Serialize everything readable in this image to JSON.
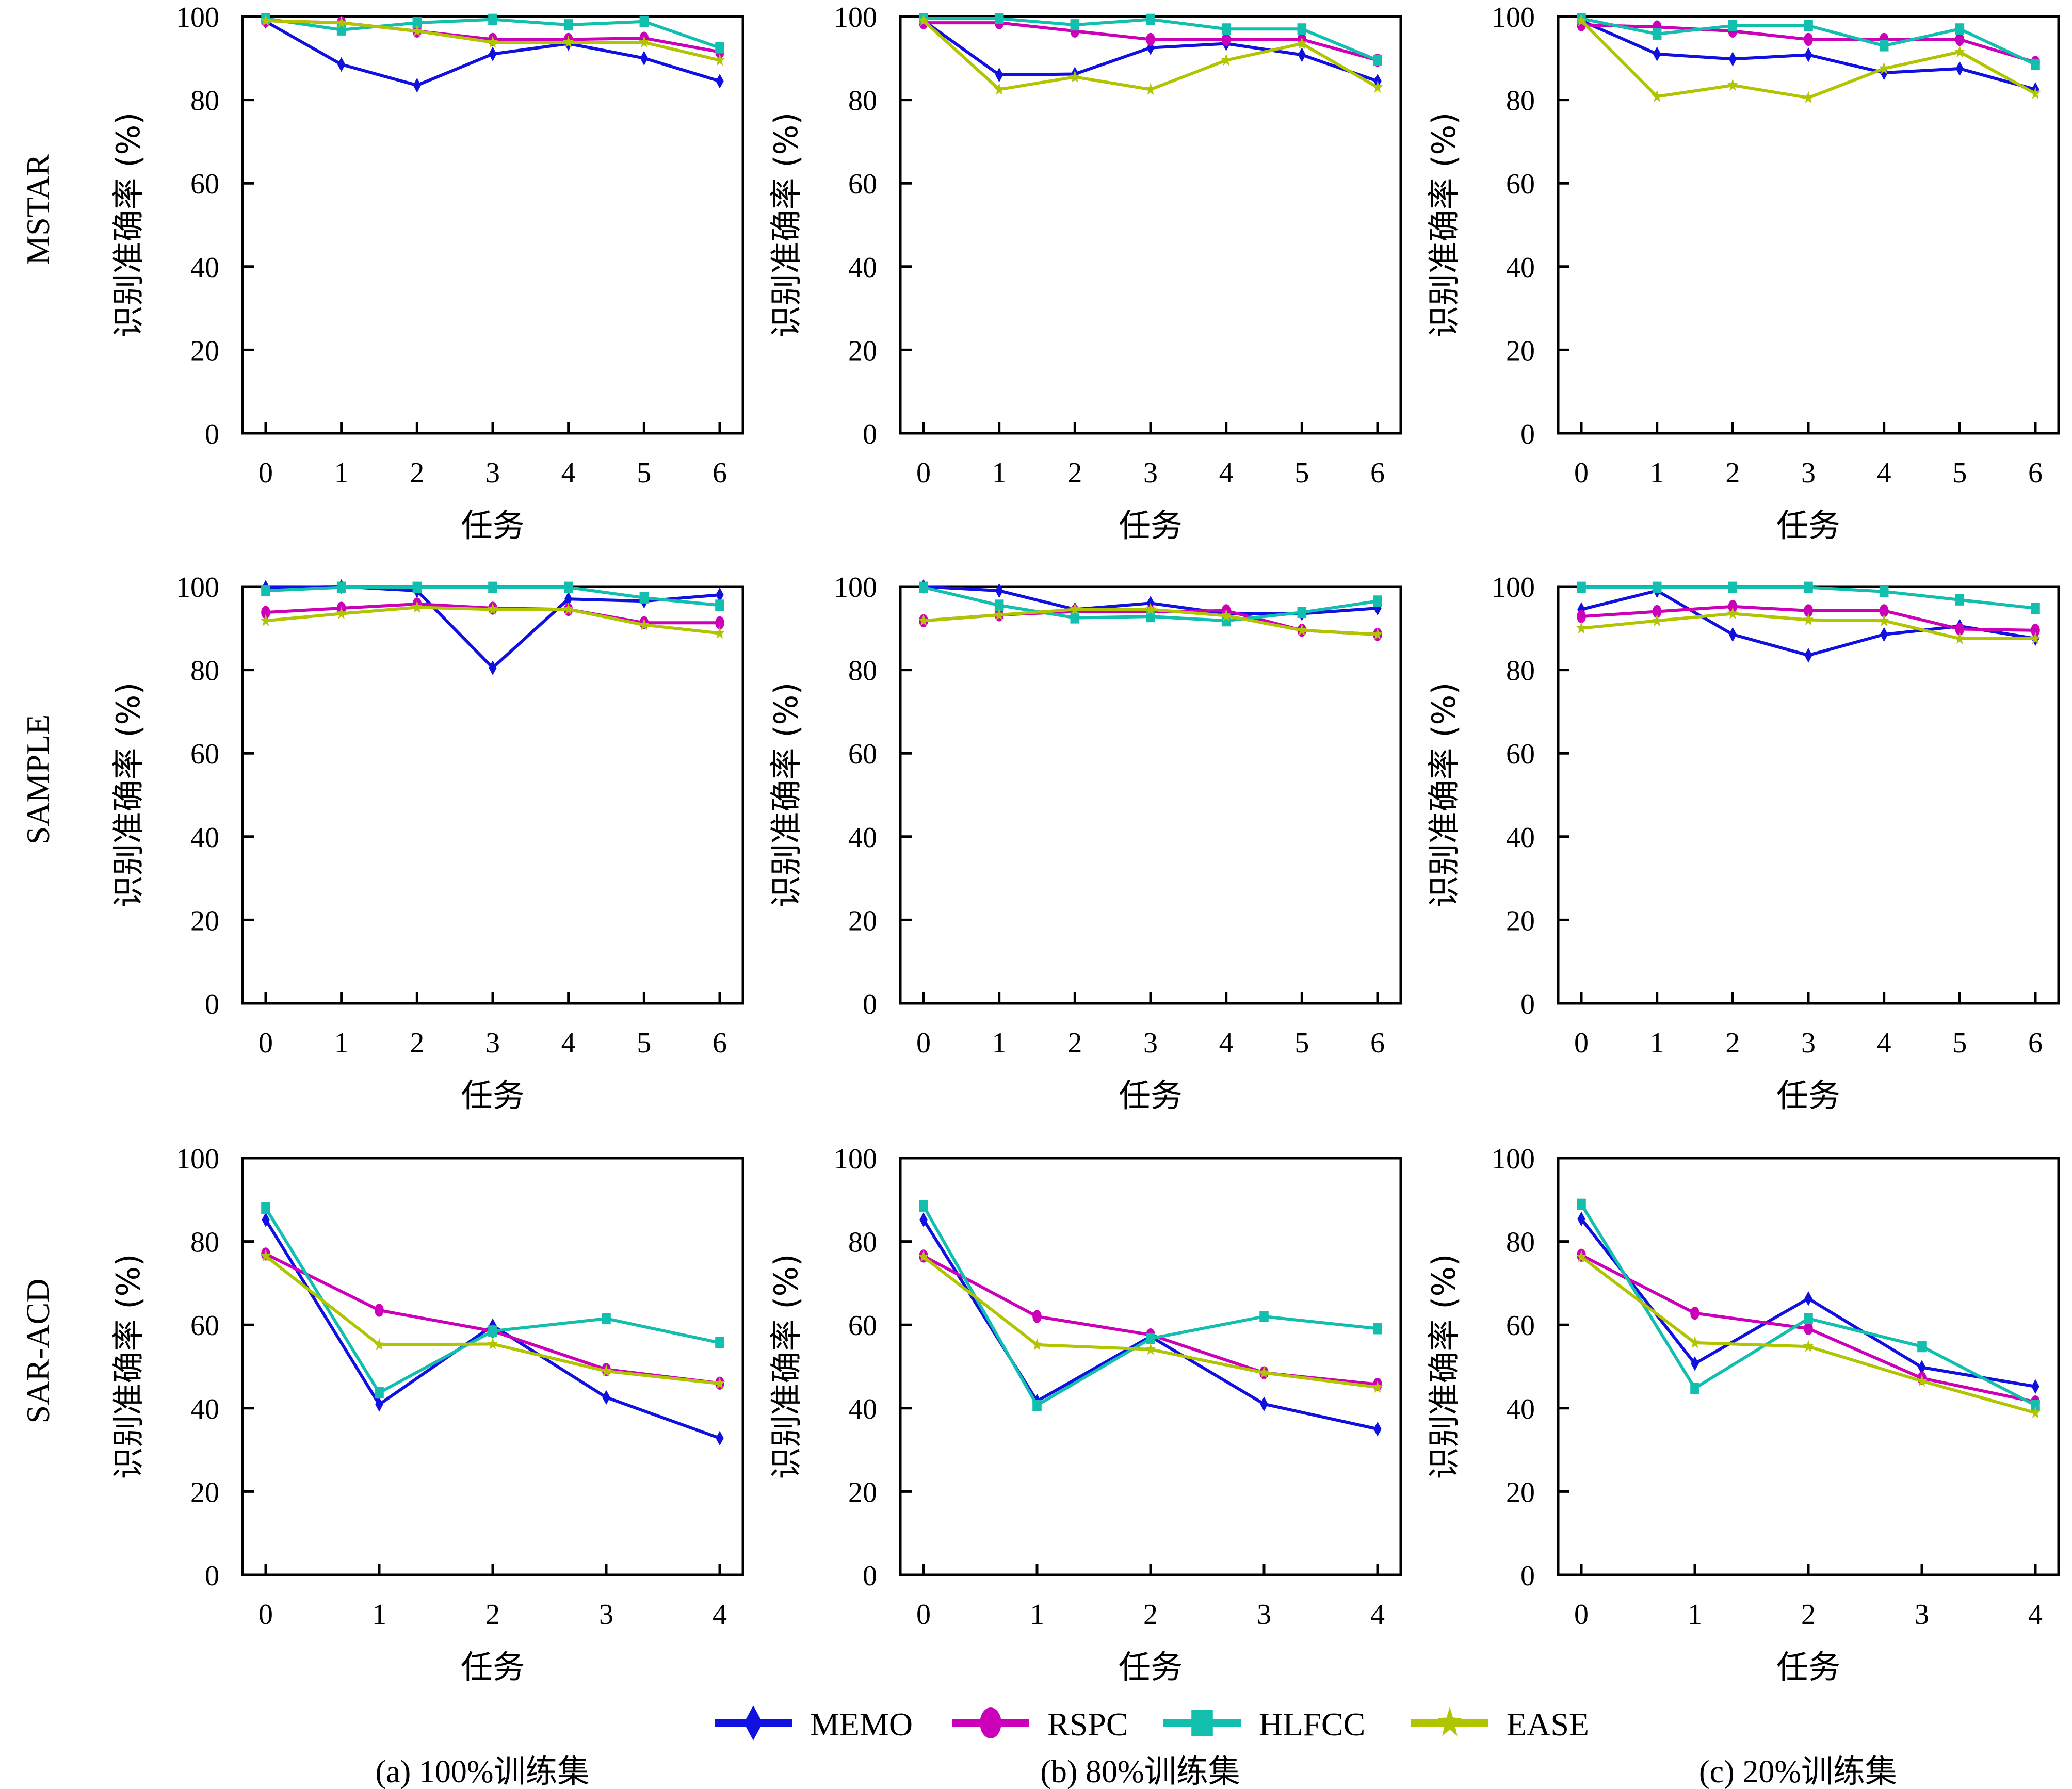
{
  "figure": {
    "row_labels": [
      "MSTAR",
      "SAMPLE",
      "SAR-ACD"
    ],
    "column_captions": [
      "(a) 100%训练集",
      "(b) 80%训练集",
      "(c) 20%训练集"
    ],
    "legend": [
      {
        "name": "MEMO",
        "color": "#1010e0",
        "marker": "diamond"
      },
      {
        "name": "RSPC",
        "color": "#cc00b8",
        "marker": "circle"
      },
      {
        "name": "HLFCC",
        "color": "#12bfae",
        "marker": "square"
      },
      {
        "name": "EASE",
        "color": "#b0c400",
        "marker": "star"
      }
    ]
  },
  "chart_data": [
    {
      "type": "line",
      "row": "MSTAR",
      "column": "(a) 100%训练集",
      "xlabel": "任务",
      "ylabel": "识别准确率 (%)",
      "ylim": [
        0,
        100
      ],
      "yticks": [
        0,
        20,
        40,
        60,
        80,
        100
      ],
      "x": [
        0,
        1,
        2,
        3,
        4,
        5,
        6
      ],
      "series": [
        {
          "name": "MEMO",
          "values": [
            98.8,
            88.5,
            83.5,
            91.0,
            93.5,
            90.0,
            84.5
          ]
        },
        {
          "name": "RSPC",
          "values": [
            99.0,
            98.5,
            96.5,
            94.5,
            94.5,
            94.8,
            91.5
          ]
        },
        {
          "name": "HLFCC",
          "values": [
            99.5,
            96.8,
            98.5,
            99.3,
            98.0,
            98.8,
            92.5
          ]
        },
        {
          "name": "EASE",
          "values": [
            99.0,
            98.5,
            96.5,
            93.8,
            93.8,
            93.8,
            89.5
          ]
        }
      ]
    },
    {
      "type": "line",
      "row": "MSTAR",
      "column": "(b) 80%训练集",
      "xlabel": "任务",
      "ylabel": "识别准确率 (%)",
      "ylim": [
        0,
        100
      ],
      "yticks": [
        0,
        20,
        40,
        60,
        80,
        100
      ],
      "x": [
        0,
        1,
        2,
        3,
        4,
        5,
        6
      ],
      "series": [
        {
          "name": "MEMO",
          "values": [
            99.0,
            86.0,
            86.2,
            92.5,
            93.5,
            90.8,
            84.5
          ]
        },
        {
          "name": "RSPC",
          "values": [
            98.5,
            98.5,
            96.5,
            94.5,
            94.5,
            94.5,
            89.5
          ]
        },
        {
          "name": "HLFCC",
          "values": [
            99.5,
            99.5,
            98.0,
            99.3,
            97.0,
            97.0,
            89.5
          ]
        },
        {
          "name": "EASE",
          "values": [
            99.0,
            82.5,
            85.5,
            82.5,
            89.5,
            93.5,
            83.0
          ]
        }
      ]
    },
    {
      "type": "line",
      "row": "MSTAR",
      "column": "(c) 20%训练集",
      "xlabel": "任务",
      "ylabel": "识别准确率 (%)",
      "ylim": [
        0,
        100
      ],
      "yticks": [
        0,
        20,
        40,
        60,
        80,
        100
      ],
      "x": [
        0,
        1,
        2,
        3,
        4,
        5,
        6
      ],
      "series": [
        {
          "name": "MEMO",
          "values": [
            99.0,
            91.0,
            89.8,
            90.8,
            86.5,
            87.5,
            82.5
          ]
        },
        {
          "name": "RSPC",
          "values": [
            98.0,
            97.5,
            96.5,
            94.5,
            94.5,
            94.5,
            89.0
          ]
        },
        {
          "name": "HLFCC",
          "values": [
            99.5,
            95.8,
            97.8,
            97.8,
            93.0,
            97.0,
            88.5
          ]
        },
        {
          "name": "EASE",
          "values": [
            99.0,
            80.8,
            83.5,
            80.5,
            87.5,
            91.5,
            81.5
          ]
        }
      ]
    },
    {
      "type": "line",
      "row": "SAMPLE",
      "column": "(a) 100%训练集",
      "xlabel": "任务",
      "ylabel": "识别准确率 (%)",
      "ylim": [
        0,
        100
      ],
      "yticks": [
        0,
        20,
        40,
        60,
        80,
        100
      ],
      "x": [
        0,
        1,
        2,
        3,
        4,
        5,
        6
      ],
      "series": [
        {
          "name": "MEMO",
          "values": [
            99.8,
            100.0,
            99.0,
            80.5,
            97.0,
            96.5,
            98.0
          ]
        },
        {
          "name": "RSPC",
          "values": [
            93.8,
            94.8,
            95.8,
            94.8,
            94.5,
            91.3,
            91.3
          ]
        },
        {
          "name": "HLFCC",
          "values": [
            99.0,
            99.8,
            99.8,
            99.8,
            99.8,
            97.3,
            95.5
          ]
        },
        {
          "name": "EASE",
          "values": [
            91.8,
            93.5,
            95.0,
            94.5,
            94.5,
            90.8,
            88.8
          ]
        }
      ]
    },
    {
      "type": "line",
      "row": "SAMPLE",
      "column": "(b) 80%训练集",
      "xlabel": "任务",
      "ylabel": "识别准确率 (%)",
      "ylim": [
        0,
        100
      ],
      "yticks": [
        0,
        20,
        40,
        60,
        80,
        100
      ],
      "x": [
        0,
        1,
        2,
        3,
        4,
        5,
        6
      ],
      "series": [
        {
          "name": "MEMO",
          "values": [
            100.0,
            99.0,
            94.5,
            96.0,
            93.5,
            93.5,
            94.8
          ]
        },
        {
          "name": "RSPC",
          "values": [
            91.8,
            93.2,
            94.0,
            94.0,
            94.2,
            89.5,
            88.5
          ]
        },
        {
          "name": "HLFCC",
          "values": [
            99.8,
            95.5,
            92.5,
            92.8,
            91.8,
            93.8,
            96.5
          ]
        },
        {
          "name": "EASE",
          "values": [
            91.8,
            93.2,
            94.5,
            94.5,
            93.0,
            89.5,
            88.5
          ]
        }
      ]
    },
    {
      "type": "line",
      "row": "SAMPLE",
      "column": "(c) 20%训练集",
      "xlabel": "任务",
      "ylabel": "识别准确率 (%)",
      "ylim": [
        0,
        100
      ],
      "yticks": [
        0,
        20,
        40,
        60,
        80,
        100
      ],
      "x": [
        0,
        1,
        2,
        3,
        4,
        5,
        6
      ],
      "series": [
        {
          "name": "MEMO",
          "values": [
            94.5,
            99.0,
            88.5,
            83.5,
            88.5,
            90.5,
            87.5
          ]
        },
        {
          "name": "RSPC",
          "values": [
            92.8,
            94.0,
            95.2,
            94.2,
            94.2,
            89.8,
            89.5
          ]
        },
        {
          "name": "HLFCC",
          "values": [
            99.8,
            99.8,
            99.8,
            99.8,
            98.8,
            96.8,
            94.8
          ]
        },
        {
          "name": "EASE",
          "values": [
            90.0,
            91.8,
            93.5,
            92.0,
            91.8,
            87.5,
            87.5
          ]
        }
      ]
    },
    {
      "type": "line",
      "row": "SAR-ACD",
      "column": "(a) 100%训练集",
      "xlabel": "任务",
      "ylabel": "识别准确率 (%)",
      "ylim": [
        0,
        100
      ],
      "yticks": [
        0,
        20,
        40,
        60,
        80,
        100
      ],
      "x": [
        0,
        1,
        2,
        3,
        4
      ],
      "series": [
        {
          "name": "MEMO",
          "values": [
            85.2,
            40.9,
            59.8,
            42.6,
            32.8
          ]
        },
        {
          "name": "RSPC",
          "values": [
            77.0,
            63.5,
            58.5,
            49.3,
            46.0
          ]
        },
        {
          "name": "HLFCC",
          "values": [
            88.0,
            43.7,
            58.5,
            61.5,
            55.7
          ]
        },
        {
          "name": "EASE",
          "values": [
            76.5,
            55.2,
            55.4,
            48.9,
            45.9
          ]
        }
      ]
    },
    {
      "type": "line",
      "row": "SAR-ACD",
      "column": "(b) 80%训练集",
      "xlabel": "任务",
      "ylabel": "识别准确率 (%)",
      "ylim": [
        0,
        100
      ],
      "yticks": [
        0,
        20,
        40,
        60,
        80,
        100
      ],
      "x": [
        0,
        1,
        2,
        3,
        4
      ],
      "series": [
        {
          "name": "MEMO",
          "values": [
            85.2,
            41.7,
            57.2,
            41.0,
            35.0
          ]
        },
        {
          "name": "RSPC",
          "values": [
            76.5,
            62.0,
            57.6,
            48.5,
            45.7
          ]
        },
        {
          "name": "HLFCC",
          "values": [
            88.5,
            40.7,
            56.7,
            62.0,
            59.1
          ]
        },
        {
          "name": "EASE",
          "values": [
            76.3,
            55.2,
            54.1,
            48.5,
            45.0
          ]
        }
      ]
    },
    {
      "type": "line",
      "row": "SAR-ACD",
      "column": "(c) 20%训练集",
      "xlabel": "任务",
      "ylabel": "识别准确率 (%)",
      "ylim": [
        0,
        100
      ],
      "yticks": [
        0,
        20,
        40,
        60,
        80,
        100
      ],
      "x": [
        0,
        1,
        2,
        3,
        4
      ],
      "series": [
        {
          "name": "MEMO",
          "values": [
            85.4,
            50.7,
            66.3,
            49.8,
            45.2
          ]
        },
        {
          "name": "RSPC",
          "values": [
            76.7,
            62.8,
            59.1,
            47.2,
            41.5
          ]
        },
        {
          "name": "HLFCC",
          "values": [
            88.9,
            44.8,
            61.5,
            54.8,
            40.7
          ]
        },
        {
          "name": "EASE",
          "values": [
            76.3,
            55.7,
            54.8,
            46.5,
            38.9
          ]
        }
      ]
    }
  ]
}
